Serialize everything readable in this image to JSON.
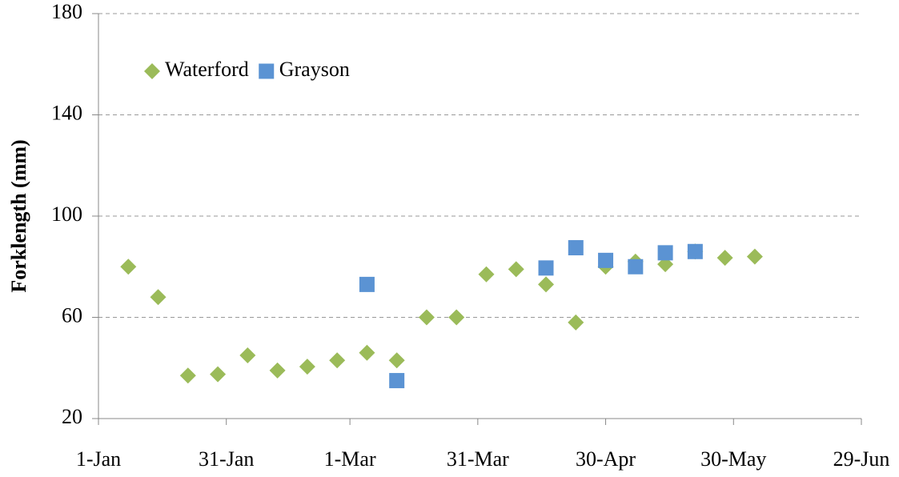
{
  "chart_data": {
    "type": "scatter",
    "y_label": "Forklength (mm)",
    "xlim": [
      0,
      179
    ],
    "xticks": [
      {
        "value": 0,
        "label": "1-Jan"
      },
      {
        "value": 30,
        "label": "31-Jan"
      },
      {
        "value": 59,
        "label": "1-Mar"
      },
      {
        "value": 89,
        "label": "31-Mar"
      },
      {
        "value": 119,
        "label": "30-Apr"
      },
      {
        "value": 149,
        "label": "30-May"
      },
      {
        "value": 179,
        "label": "29-Jun"
      }
    ],
    "ylim": [
      20,
      180
    ],
    "yticks": [
      20,
      60,
      100,
      140,
      180
    ],
    "grid": true,
    "legend": "upper left",
    "series": [
      {
        "name": "Waterford",
        "color": "#9bbb59",
        "marker": "diamond",
        "x": [
          7,
          14,
          21,
          28,
          35,
          42,
          49,
          56,
          63,
          70,
          77,
          84,
          91,
          98,
          105,
          112,
          119,
          126,
          133,
          140,
          147,
          154
        ],
        "values": [
          80,
          68,
          37,
          37.5,
          45,
          39,
          40.5,
          43,
          46,
          43,
          60,
          60,
          77,
          79,
          73,
          58,
          80,
          82,
          81,
          86,
          83.5,
          84
        ]
      },
      {
        "name": "Grayson",
        "color": "#5b93d3",
        "marker": "square",
        "x": [
          63,
          70,
          105,
          112,
          119,
          126,
          133,
          140
        ],
        "values": [
          73,
          35,
          79.5,
          87.5,
          82.5,
          80,
          85.5,
          86
        ]
      }
    ]
  }
}
